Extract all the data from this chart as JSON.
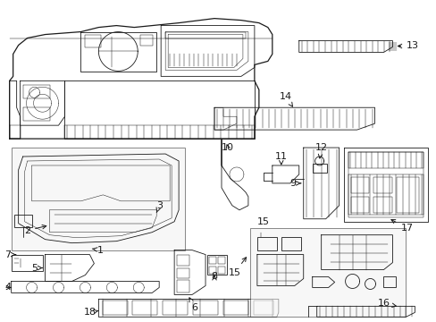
{
  "bg": "#ffffff",
  "lc": "#1a1a1a",
  "lw_main": 0.9,
  "lw_med": 0.6,
  "lw_thin": 0.35,
  "fig_w": 4.89,
  "fig_h": 3.6,
  "dpi": 100
}
